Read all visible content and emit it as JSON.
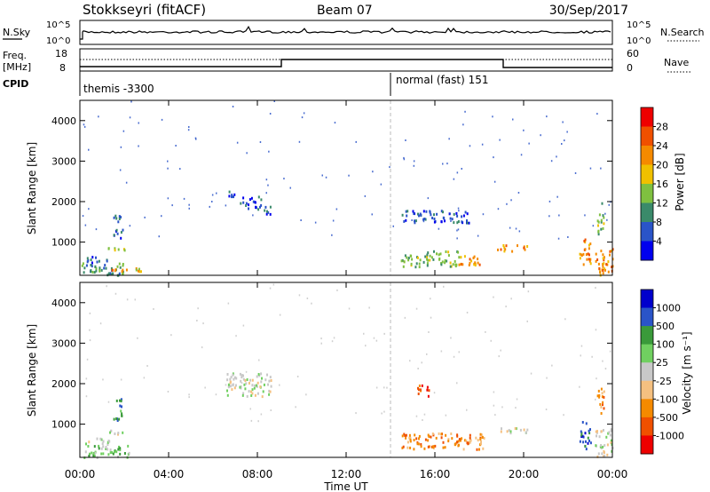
{
  "header": {
    "title": "Stokkseyri (fitACF)",
    "beam": "Beam 07",
    "date": "30/Sep/2017"
  },
  "noise_panel": {
    "left_label": "N.Sky",
    "right_label": "N.Search",
    "left_ticks": [
      "10^5",
      "10^0"
    ],
    "right_ticks": [
      "10^5",
      "10^0"
    ]
  },
  "freq_panel": {
    "left_label_1": "Freq.",
    "left_label_2": "[MHz]",
    "right_label": "Nave",
    "left_ticks": [
      "18",
      "8"
    ],
    "right_ticks": [
      "60",
      "0"
    ]
  },
  "cpid_panel": {
    "label": "CPID",
    "modes": [
      {
        "name": "themis -3300",
        "start_hour": 0
      },
      {
        "name": "normal (fast) 151",
        "start_hour": 14.0
      }
    ]
  },
  "x_axis": {
    "label": "Time UT",
    "ticks": [
      "00:00",
      "04:00",
      "08:00",
      "12:00",
      "16:00",
      "20:00",
      "00:00"
    ],
    "tick_hours": [
      0,
      4,
      8,
      12,
      16,
      20,
      24
    ],
    "range": [
      0,
      24
    ]
  },
  "colors": {
    "power": [
      "#0000ee",
      "#2a54c8",
      "#3a8a6a",
      "#7fc040",
      "#f0c000",
      "#f58a00",
      "#f05000",
      "#ee0000"
    ],
    "velocity": [
      "#ee0000",
      "#f05000",
      "#f58a00",
      "#f5c080",
      "#c8c8c8",
      "#70d060",
      "#3a9a3a",
      "#2a54c8",
      "#0000cc"
    ]
  },
  "chart_data": [
    {
      "type": "heatmap",
      "panel": "power",
      "ylabel": "Slant Range [km]",
      "yticks": [
        1000,
        2000,
        3000,
        4000
      ],
      "ylim": [
        180,
        4500
      ],
      "colorbar_label": "Power [dB]",
      "colorbar_ticks": [
        "28",
        "24",
        "20",
        "16",
        "12",
        "8",
        "4"
      ],
      "regions": [
        {
          "t0": 0.0,
          "t1": 2.2,
          "r0": 200,
          "r1": 500,
          "level": 2
        },
        {
          "t0": 0.2,
          "t1": 1.3,
          "r0": 520,
          "r1": 680,
          "level": 1
        },
        {
          "t0": 1.4,
          "t1": 2.2,
          "r0": 300,
          "r1": 440,
          "level": 5
        },
        {
          "t0": 2.2,
          "t1": 2.9,
          "r0": 300,
          "r1": 380,
          "level": 4
        },
        {
          "t0": 1.2,
          "t1": 2.0,
          "r0": 780,
          "r1": 920,
          "level": 3
        },
        {
          "t0": 1.5,
          "t1": 1.9,
          "r0": 1100,
          "r1": 1700,
          "level": 1
        },
        {
          "t0": 6.6,
          "t1": 7.2,
          "r0": 2150,
          "r1": 2300,
          "level": 1
        },
        {
          "t0": 7.2,
          "t1": 8.2,
          "r0": 1850,
          "r1": 2150,
          "level": 1
        },
        {
          "t0": 8.0,
          "t1": 8.6,
          "r0": 1700,
          "r1": 1900,
          "level": 1
        },
        {
          "t0": 14.4,
          "t1": 15.6,
          "r0": 400,
          "r1": 700,
          "level": 3
        },
        {
          "t0": 15.6,
          "t1": 17.2,
          "r0": 420,
          "r1": 800,
          "level": 3
        },
        {
          "t0": 17.0,
          "t1": 18.2,
          "r0": 450,
          "r1": 700,
          "level": 5
        },
        {
          "t0": 18.8,
          "t1": 20.2,
          "r0": 800,
          "r1": 950,
          "level": 5
        },
        {
          "t0": 22.5,
          "t1": 23.0,
          "r0": 400,
          "r1": 1100,
          "level": 5
        },
        {
          "t0": 23.2,
          "t1": 24.0,
          "r0": 200,
          "r1": 900,
          "level": 5
        },
        {
          "t0": 23.3,
          "t1": 23.6,
          "r0": 1200,
          "r1": 2000,
          "level": 3
        },
        {
          "t0": 14.5,
          "t1": 17.5,
          "r0": 1500,
          "r1": 1800,
          "level": 1
        }
      ]
    },
    {
      "type": "heatmap",
      "panel": "velocity",
      "ylabel": "Slant Range [km]",
      "yticks": [
        1000,
        2000,
        3000,
        4000
      ],
      "ylim": [
        180,
        4500
      ],
      "colorbar_label": "Velocity [m s⁻¹]",
      "colorbar_ticks": [
        "1000",
        "500",
        "100",
        "25",
        "-25",
        "-100",
        "-500",
        "-1000"
      ],
      "regions": [
        {
          "t0": 0.0,
          "t1": 2.2,
          "r0": 200,
          "r1": 500,
          "level": 5
        },
        {
          "t0": 0.2,
          "t1": 1.3,
          "r0": 520,
          "r1": 680,
          "level": 4
        },
        {
          "t0": 1.2,
          "t1": 2.0,
          "r0": 780,
          "r1": 920,
          "level": 4
        },
        {
          "t0": 1.5,
          "t1": 1.9,
          "r0": 1100,
          "r1": 1700,
          "level": 6
        },
        {
          "t0": 6.6,
          "t1": 8.6,
          "r0": 1700,
          "r1": 2300,
          "level": 4
        },
        {
          "t0": 14.4,
          "t1": 18.2,
          "r0": 400,
          "r1": 800,
          "level": 2
        },
        {
          "t0": 18.8,
          "t1": 20.2,
          "r0": 800,
          "r1": 950,
          "level": 4
        },
        {
          "t0": 22.5,
          "t1": 23.0,
          "r0": 400,
          "r1": 1100,
          "level": 7
        },
        {
          "t0": 23.2,
          "t1": 24.0,
          "r0": 200,
          "r1": 900,
          "level": 4
        },
        {
          "t0": 23.3,
          "t1": 23.6,
          "r0": 1200,
          "r1": 2000,
          "level": 2
        },
        {
          "t0": 15.2,
          "t1": 15.8,
          "r0": 1700,
          "r1": 2000,
          "level": 1
        }
      ]
    }
  ]
}
